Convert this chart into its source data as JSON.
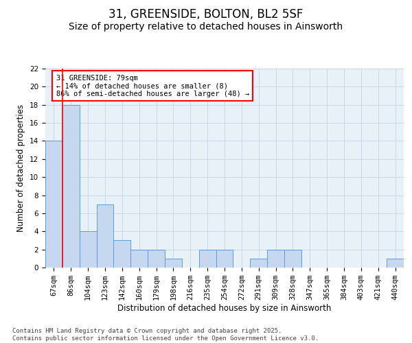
{
  "title": "31, GREENSIDE, BOLTON, BL2 5SF",
  "subtitle": "Size of property relative to detached houses in Ainsworth",
  "xlabel": "Distribution of detached houses by size in Ainsworth",
  "ylabel": "Number of detached properties",
  "categories": [
    "67sqm",
    "86sqm",
    "104sqm",
    "123sqm",
    "142sqm",
    "160sqm",
    "179sqm",
    "198sqm",
    "216sqm",
    "235sqm",
    "254sqm",
    "272sqm",
    "291sqm",
    "309sqm",
    "328sqm",
    "347sqm",
    "365sqm",
    "384sqm",
    "403sqm",
    "421sqm",
    "440sqm"
  ],
  "values": [
    14,
    18,
    4,
    7,
    3,
    2,
    2,
    1,
    0,
    2,
    2,
    0,
    1,
    2,
    2,
    0,
    0,
    0,
    0,
    0,
    1
  ],
  "bar_color": "#c5d8f0",
  "bar_edge_color": "#5b9bd5",
  "annotation_text": "31 GREENSIDE: 79sqm\n← 14% of detached houses are smaller (8)\n86% of semi-detached houses are larger (48) →",
  "ylim": [
    0,
    22
  ],
  "yticks": [
    0,
    2,
    4,
    6,
    8,
    10,
    12,
    14,
    16,
    18,
    20,
    22
  ],
  "grid_color": "#c8d8e8",
  "bg_color": "#e8f0f8",
  "footnote": "Contains HM Land Registry data © Crown copyright and database right 2025.\nContains public sector information licensed under the Open Government Licence v3.0.",
  "title_fontsize": 12,
  "subtitle_fontsize": 10,
  "label_fontsize": 8.5,
  "tick_fontsize": 7.5,
  "annotation_fontsize": 7.5,
  "footnote_fontsize": 6.5
}
